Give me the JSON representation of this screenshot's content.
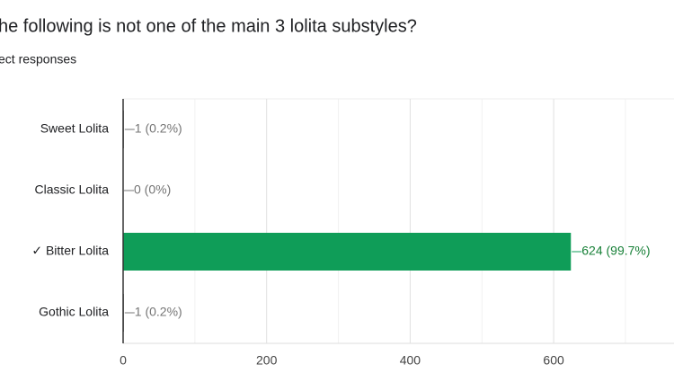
{
  "chart_data": {
    "type": "bar",
    "orientation": "horizontal",
    "title": "he following is not one of the main 3 lolita substyles?",
    "subtitle": "ect responses",
    "categories": [
      "Sweet Lolita",
      "Classic Lolita",
      "✓ Bitter Lolita",
      "Gothic Lolita"
    ],
    "values": [
      1,
      0,
      624,
      1
    ],
    "value_labels": [
      "1 (0.2%)",
      "0 (0%)",
      "624 (99.7%)",
      "1 (0.2%)"
    ],
    "highlight_index": 2,
    "color": "#0f9d58",
    "xlim": [
      0,
      800
    ],
    "xticks": [
      0,
      200,
      400,
      600
    ],
    "minor_gridlines": [
      100,
      300,
      500,
      700
    ],
    "grid": true
  }
}
